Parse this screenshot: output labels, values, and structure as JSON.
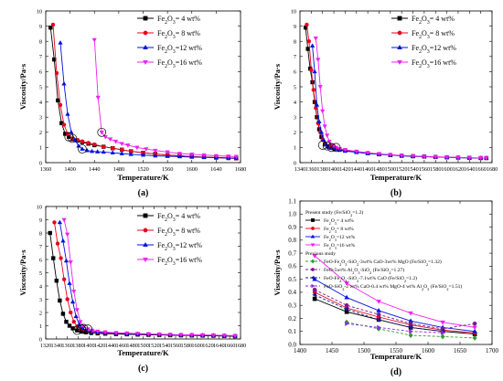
{
  "chart_data": [
    {
      "type": "line",
      "panel_label": "(a)",
      "xlabel": "Temperature/K",
      "ylabel": "Viscosity/Pa·s",
      "xlim": [
        1360,
        1680
      ],
      "ylim": [
        0,
        10
      ],
      "xticks": [
        1360,
        1400,
        1440,
        1480,
        1520,
        1560,
        1600,
        1640,
        1680
      ],
      "yticks": [
        0,
        1,
        2,
        3,
        4,
        5,
        6,
        7,
        8,
        9,
        10
      ],
      "legend_position": "top-right",
      "series": [
        {
          "name": "Fe2O3= 4 wt%",
          "marker": "square",
          "color": "#000000",
          "x": [
            1368,
            1374,
            1380,
            1386,
            1392,
            1398,
            1404,
            1412,
            1420,
            1430,
            1440,
            1455,
            1470,
            1485,
            1500,
            1520,
            1540,
            1560,
            1580,
            1600,
            1620,
            1640,
            1660,
            1673
          ],
          "y": [
            8.9,
            6.8,
            4.1,
            2.6,
            1.9,
            1.7,
            1.55,
            1.45,
            1.35,
            1.25,
            1.15,
            1.05,
            0.95,
            0.85,
            0.75,
            0.65,
            0.58,
            0.5,
            0.45,
            0.4,
            0.37,
            0.33,
            0.3,
            0.28
          ]
        },
        {
          "name": "Fe2O3= 8 wt%",
          "marker": "circle",
          "color": "#e8001c",
          "x": [
            1372,
            1378,
            1384,
            1390,
            1396,
            1404,
            1412,
            1420,
            1430,
            1440,
            1455,
            1470,
            1485,
            1500,
            1520,
            1540,
            1560,
            1580,
            1600,
            1620,
            1640,
            1660,
            1673
          ],
          "y": [
            9.1,
            5.9,
            3.8,
            2.5,
            1.9,
            1.6,
            1.5,
            1.4,
            1.3,
            1.2,
            1.05,
            0.95,
            0.85,
            0.75,
            0.65,
            0.58,
            0.5,
            0.45,
            0.4,
            0.37,
            0.33,
            0.3,
            0.28
          ]
        },
        {
          "name": "Fe2O3=12 wt%",
          "marker": "triangle-up",
          "color": "#0010e0",
          "x": [
            1384,
            1390,
            1396,
            1402,
            1408,
            1414,
            1420,
            1428,
            1436,
            1445,
            1455,
            1470,
            1485,
            1500,
            1520,
            1540,
            1560,
            1580,
            1600,
            1620,
            1640,
            1660,
            1673
          ],
          "y": [
            7.9,
            5.2,
            3.2,
            2.0,
            1.5,
            1.1,
            0.9,
            0.8,
            0.75,
            0.72,
            0.7,
            0.65,
            0.6,
            0.55,
            0.5,
            0.45,
            0.42,
            0.4,
            0.37,
            0.35,
            0.33,
            0.31,
            0.3
          ]
        },
        {
          "name": "Fe2O3=16 wt%",
          "marker": "triangle-down",
          "color": "#f020f0",
          "x": [
            1440,
            1446,
            1452,
            1458,
            1466,
            1475,
            1485,
            1495,
            1510,
            1525,
            1540,
            1560,
            1580,
            1600,
            1620,
            1640,
            1660,
            1673
          ],
          "y": [
            8.1,
            4.3,
            2.0,
            1.7,
            1.55,
            1.4,
            1.25,
            1.15,
            1.0,
            0.9,
            0.8,
            0.7,
            0.6,
            0.55,
            0.5,
            0.45,
            0.42,
            0.4
          ]
        }
      ],
      "highlighted_points": [
        [
          1398,
          1.7
        ],
        [
          1404,
          1.6
        ],
        [
          1420,
          0.9
        ],
        [
          1452,
          2.0
        ]
      ]
    },
    {
      "type": "line",
      "panel_label": "(b)",
      "xlabel": "Temperature/K",
      "ylabel": "Viscosity/Pa·s",
      "xlim": [
        1340,
        1680
      ],
      "ylim": [
        0,
        10
      ],
      "xticks": [
        1340,
        1360,
        1380,
        1400,
        1420,
        1440,
        1460,
        1480,
        1500,
        1520,
        1540,
        1560,
        1580,
        1600,
        1620,
        1640,
        1660,
        1680
      ],
      "yticks": [
        0,
        1,
        2,
        3,
        4,
        5,
        6,
        7,
        8,
        9,
        10
      ],
      "legend_position": "top-right",
      "series": [
        {
          "name": "Fe2O3= 4 wt%",
          "marker": "square",
          "color": "#000000",
          "x": [
            1350,
            1354,
            1358,
            1362,
            1366,
            1370,
            1374,
            1378,
            1384,
            1390,
            1400,
            1410,
            1420,
            1440,
            1460,
            1480,
            1500,
            1520,
            1540,
            1560,
            1580,
            1600,
            1620,
            1640,
            1660,
            1670
          ],
          "y": [
            8.9,
            7.5,
            6.2,
            5.3,
            4.0,
            3.0,
            2.2,
            1.7,
            1.2,
            1.05,
            0.95,
            0.85,
            0.8,
            0.7,
            0.62,
            0.55,
            0.5,
            0.45,
            0.42,
            0.4,
            0.37,
            0.35,
            0.33,
            0.31,
            0.3,
            0.3
          ]
        },
        {
          "name": "Fe2O3= 8 wt%",
          "marker": "circle",
          "color": "#e8001c",
          "x": [
            1352,
            1356,
            1360,
            1364,
            1368,
            1372,
            1376,
            1380,
            1386,
            1392,
            1400,
            1410,
            1420,
            1440,
            1460,
            1480,
            1500,
            1520,
            1540,
            1560,
            1580,
            1600,
            1620,
            1640,
            1660,
            1670
          ],
          "y": [
            9.1,
            8.0,
            6.1,
            4.8,
            3.6,
            2.6,
            2.0,
            1.5,
            1.2,
            1.1,
            1.0,
            0.9,
            0.82,
            0.72,
            0.64,
            0.57,
            0.52,
            0.47,
            0.44,
            0.41,
            0.38,
            0.36,
            0.34,
            0.32,
            0.31,
            0.3
          ]
        },
        {
          "name": "Fe2O3=12 wt%",
          "marker": "triangle-up",
          "color": "#0010e0",
          "x": [
            1362,
            1366,
            1370,
            1374,
            1378,
            1382,
            1386,
            1390,
            1396,
            1402,
            1410,
            1420,
            1440,
            1460,
            1480,
            1500,
            1520,
            1540,
            1560,
            1580,
            1600,
            1620,
            1640,
            1660,
            1670
          ],
          "y": [
            7.7,
            6.0,
            3.8,
            2.7,
            2.0,
            1.5,
            1.2,
            1.05,
            0.95,
            0.88,
            0.82,
            0.76,
            0.68,
            0.6,
            0.55,
            0.5,
            0.45,
            0.42,
            0.4,
            0.37,
            0.35,
            0.33,
            0.31,
            0.3,
            0.3
          ]
        },
        {
          "name": "Fe2O3=16 wt%",
          "marker": "triangle-down",
          "color": "#f020f0",
          "x": [
            1368,
            1372,
            1376,
            1380,
            1384,
            1388,
            1392,
            1398,
            1404,
            1410,
            1420,
            1440,
            1460,
            1480,
            1500,
            1520,
            1540,
            1560,
            1580,
            1600,
            1620,
            1640,
            1660,
            1670
          ],
          "y": [
            8.2,
            6.8,
            5.0,
            3.4,
            2.4,
            1.8,
            1.4,
            1.15,
            1.0,
            0.92,
            0.85,
            0.74,
            0.65,
            0.58,
            0.52,
            0.47,
            0.44,
            0.41,
            0.38,
            0.36,
            0.34,
            0.32,
            0.31,
            0.3
          ]
        }
      ],
      "highlighted_points": [
        [
          1380,
          1.15
        ],
        [
          1388,
          1.1
        ],
        [
          1396,
          1.0
        ],
        [
          1404,
          1.0
        ]
      ]
    },
    {
      "type": "line",
      "panel_label": "(c)",
      "xlabel": "Temperature/K",
      "ylabel": "Viscosity/Pa·s",
      "xlim": [
        1320,
        1680
      ],
      "ylim": [
        0,
        10
      ],
      "xticks": [
        1320,
        1340,
        1360,
        1380,
        1400,
        1420,
        1440,
        1460,
        1480,
        1500,
        1520,
        1540,
        1560,
        1580,
        1600,
        1620,
        1640,
        1660,
        1680
      ],
      "yticks": [
        0,
        1,
        2,
        3,
        4,
        5,
        6,
        7,
        8,
        9,
        10
      ],
      "legend_position": "top-right",
      "series": [
        {
          "name": "Fe2O3= 4 wt%",
          "marker": "square",
          "color": "#000000",
          "x": [
            1328,
            1334,
            1340,
            1346,
            1352,
            1358,
            1364,
            1370,
            1378,
            1386,
            1394,
            1404,
            1416,
            1430,
            1450,
            1470,
            1490,
            1510,
            1530,
            1550,
            1570,
            1590,
            1610,
            1630,
            1650,
            1670
          ],
          "y": [
            8.0,
            6.1,
            4.4,
            2.9,
            1.9,
            1.3,
            1.0,
            0.8,
            0.65,
            0.55,
            0.5,
            0.45,
            0.42,
            0.4,
            0.37,
            0.35,
            0.33,
            0.31,
            0.3,
            0.28,
            0.27,
            0.26,
            0.25,
            0.24,
            0.22,
            0.2
          ]
        },
        {
          "name": "Fe2O3= 8 wt%",
          "marker": "circle",
          "color": "#e8001c",
          "x": [
            1336,
            1342,
            1348,
            1354,
            1360,
            1366,
            1372,
            1378,
            1386,
            1394,
            1404,
            1416,
            1430,
            1450,
            1470,
            1490,
            1510,
            1530,
            1550,
            1570,
            1590,
            1610,
            1630,
            1650,
            1670
          ],
          "y": [
            8.8,
            7.2,
            6.1,
            4.5,
            3.0,
            2.0,
            1.3,
            0.95,
            0.75,
            0.62,
            0.55,
            0.5,
            0.45,
            0.42,
            0.4,
            0.37,
            0.35,
            0.33,
            0.31,
            0.3,
            0.29,
            0.28,
            0.27,
            0.25,
            0.22
          ]
        },
        {
          "name": "Fe2O3=12 wt%",
          "marker": "triangle-up",
          "color": "#0010e0",
          "x": [
            1346,
            1352,
            1358,
            1364,
            1370,
            1376,
            1382,
            1388,
            1396,
            1404,
            1416,
            1430,
            1450,
            1470,
            1490,
            1510,
            1530,
            1550,
            1570,
            1590,
            1610,
            1630,
            1650,
            1670
          ],
          "y": [
            8.8,
            7.4,
            5.9,
            4.2,
            2.8,
            1.7,
            1.1,
            0.8,
            0.65,
            0.58,
            0.52,
            0.47,
            0.44,
            0.41,
            0.38,
            0.36,
            0.34,
            0.32,
            0.31,
            0.3,
            0.29,
            0.28,
            0.26,
            0.24
          ]
        },
        {
          "name": "Fe2O3=16 wt%",
          "marker": "triangle-down",
          "color": "#f020f0",
          "x": [
            1354,
            1360,
            1366,
            1372,
            1378,
            1384,
            1390,
            1398,
            1406,
            1416,
            1430,
            1450,
            1470,
            1490,
            1510,
            1530,
            1550,
            1570,
            1590,
            1610,
            1630,
            1650,
            1670
          ],
          "y": [
            9.0,
            7.9,
            5.8,
            3.6,
            2.2,
            1.3,
            0.95,
            0.75,
            0.65,
            0.58,
            0.52,
            0.47,
            0.44,
            0.41,
            0.38,
            0.36,
            0.34,
            0.32,
            0.31,
            0.3,
            0.29,
            0.27,
            0.25
          ]
        }
      ],
      "highlighted_points": [
        [
          1378,
          0.65
        ],
        [
          1386,
          0.75
        ],
        [
          1390,
          0.8
        ],
        [
          1398,
          0.75
        ]
      ]
    },
    {
      "type": "line",
      "panel_label": "(d)",
      "xlabel": "Temperature/K",
      "ylabel": "Viscosity/Pa·s",
      "xlim": [
        1400,
        1700
      ],
      "ylim": [
        0,
        1.1
      ],
      "xticks": [
        1400,
        1450,
        1500,
        1550,
        1600,
        1650,
        1700
      ],
      "yticks": [
        0.0,
        0.1,
        0.2,
        0.3,
        0.4,
        0.5,
        0.6,
        0.7,
        0.8,
        0.9,
        1.0,
        1.1
      ],
      "legend_position": "top-left",
      "legend_heading_present": "Present study (Fe/SiO2=1.2)",
      "legend_heading_previous": "Previous study",
      "series": [
        {
          "name": "Fe2O3= 4 wt%",
          "group": "present",
          "marker": "square",
          "color": "#000000",
          "dashed": false,
          "x": [
            1423,
            1473,
            1523,
            1573,
            1623,
            1673
          ],
          "y": [
            0.35,
            0.25,
            0.19,
            0.13,
            0.1,
            0.08
          ]
        },
        {
          "name": "Fe2O3= 8 wt%",
          "group": "present",
          "marker": "circle",
          "color": "#e8001c",
          "dashed": false,
          "x": [
            1423,
            1473,
            1523,
            1573,
            1623,
            1673
          ],
          "y": [
            0.4,
            0.28,
            0.21,
            0.15,
            0.11,
            0.09
          ]
        },
        {
          "name": "Fe2O3=12 wt%",
          "group": "present",
          "marker": "triangle-up",
          "color": "#0010e0",
          "dashed": false,
          "x": [
            1423,
            1473,
            1523,
            1573,
            1623,
            1673
          ],
          "y": [
            0.5,
            0.36,
            0.26,
            0.18,
            0.13,
            0.1
          ]
        },
        {
          "name": "Fe2O3=16 wt%",
          "group": "present",
          "marker": "triangle-down",
          "color": "#f020f0",
          "dashed": false,
          "x": [
            1423,
            1473,
            1523,
            1573,
            1623,
            1673
          ],
          "y": [
            0.68,
            0.47,
            0.33,
            0.24,
            0.17,
            0.13
          ]
        },
        {
          "name": "FeO-Fe2O3-SiO2-3wt% CaO-3wt% MgO (Fe/SiO2=1.32)",
          "group": "previous",
          "marker": "diamond",
          "color": "#2e9d2e",
          "dashed": true,
          "x": [
            1473,
            1523,
            1573,
            1623,
            1673
          ],
          "y": [
            0.17,
            0.12,
            0.07,
            0.06,
            0.05
          ]
        },
        {
          "name": "FeO-5wt% Al2O3-SiO2 (Fe/SiO2=1.27)",
          "group": "previous",
          "marker": "circle",
          "color": "#7a1a8c",
          "dashed": true,
          "x": [
            1423,
            1473,
            1523,
            1573,
            1623,
            1673
          ],
          "y": [
            0.42,
            0.3,
            0.23,
            0.16,
            0.12,
            0.16
          ]
        },
        {
          "name": "FeO-Fe2O3-SiO2-7.1wt% CaO (Fe/SiO2=1.2)",
          "group": "previous",
          "marker": "triangle-left",
          "color": "#1a1a8c",
          "dashed": true,
          "x": [
            1423,
            1473,
            1523,
            1573,
            1623
          ],
          "y": [
            0.38,
            0.27,
            0.19,
            0.13,
            0.1
          ]
        },
        {
          "name": "FeO-SiO2-2 wt% CaO-0.4 wt% MgO-4 wt% Al2O3 (Fe/SiO2=1.51)",
          "group": "previous",
          "marker": "triangle-right",
          "color": "#8a2be2",
          "dashed": true,
          "x": [
            1473,
            1523,
            1573,
            1623
          ],
          "y": [
            0.16,
            0.13,
            0.1,
            0.09
          ]
        }
      ]
    }
  ],
  "colors": {
    "black": "#000000",
    "red": "#e8001c",
    "blue": "#0010e0",
    "magenta": "#f020f0",
    "green": "#2e9d2e"
  }
}
